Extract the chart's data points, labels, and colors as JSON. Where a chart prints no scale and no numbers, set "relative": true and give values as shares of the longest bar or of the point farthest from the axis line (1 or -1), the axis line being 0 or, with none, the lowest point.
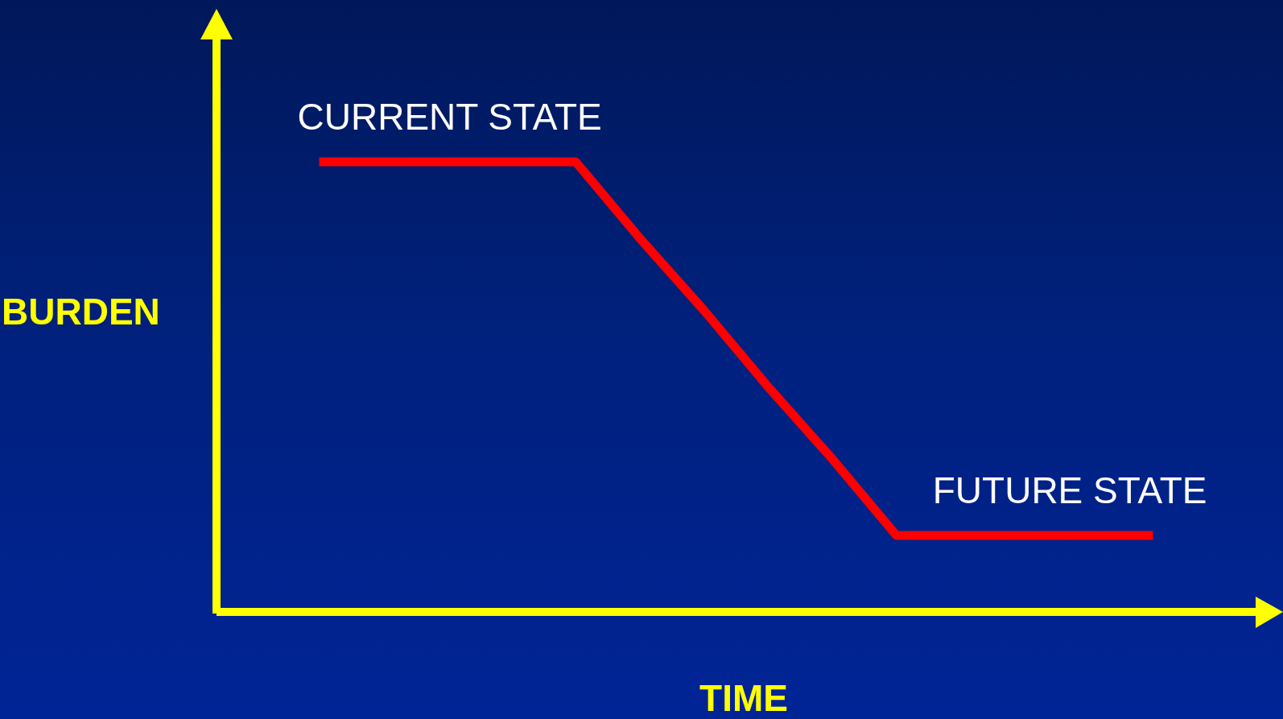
{
  "chart_data": {
    "type": "line",
    "relative": true,
    "xlabel": "TIME",
    "ylabel": "BURDEN",
    "grid": false,
    "marker": "none",
    "line_style": "solid",
    "categories": [
      null,
      null,
      null,
      null,
      null,
      null,
      null,
      null,
      null,
      null,
      null,
      null,
      null,
      null
    ],
    "series": [
      {
        "color": "#ff0000",
        "values": [
          1,
          1,
          1,
          1,
          1,
          0.83,
          0.67,
          0.5,
          0.34,
          0.17,
          0.17,
          0.17,
          0.17,
          0.17
        ]
      }
    ],
    "annotations": [
      "CURRENT STATE",
      "FUTURE STATE"
    ]
  }
}
